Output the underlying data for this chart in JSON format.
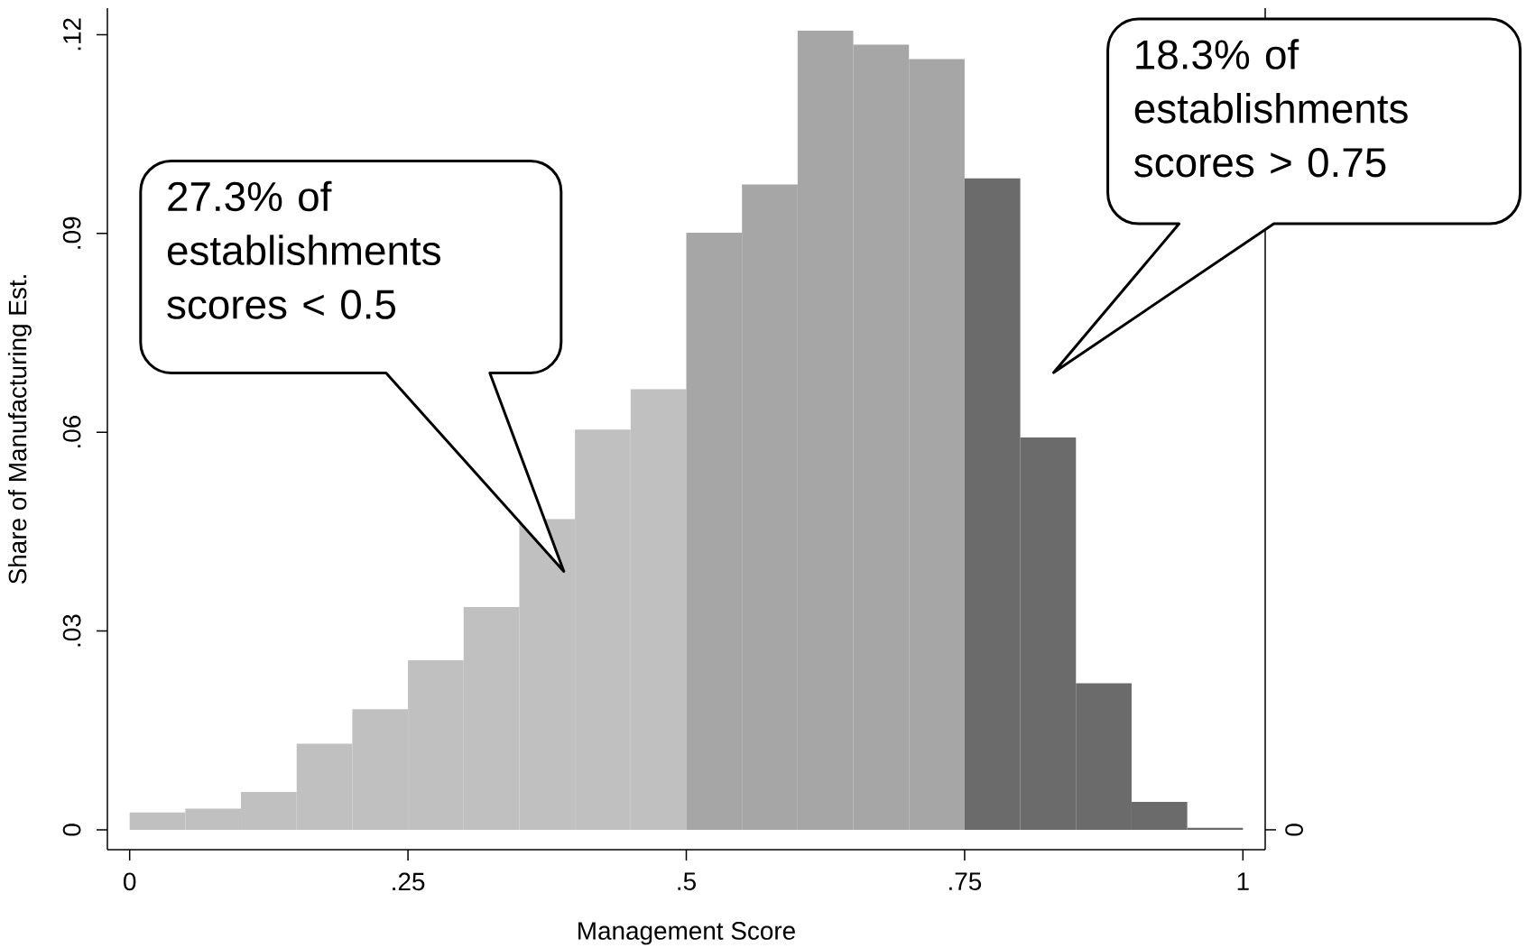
{
  "chart_data": {
    "type": "histogram",
    "xlabel": "Management Score",
    "ylabel": "Share of Manufacturing Est.",
    "bins": [
      0,
      0.05,
      0.1,
      0.15,
      0.2,
      0.25,
      0.3,
      0.35,
      0.4,
      0.45,
      0.5,
      0.55,
      0.6,
      0.65,
      0.7,
      0.75,
      0.8,
      0.85,
      0.9,
      0.95,
      1
    ],
    "values": [
      0.0026,
      0.0032,
      0.0057,
      0.013,
      0.0182,
      0.0256,
      0.0336,
      0.0469,
      0.0604,
      0.0665,
      0.0901,
      0.0974,
      0.1206,
      0.1185,
      0.1163,
      0.0983,
      0.0592,
      0.0221,
      0.0042,
      0.0003
    ],
    "colors": [
      "#c0c0c0",
      "#c0c0c0",
      "#c0c0c0",
      "#c0c0c0",
      "#c0c0c0",
      "#c0c0c0",
      "#c0c0c0",
      "#c0c0c0",
      "#c0c0c0",
      "#c0c0c0",
      "#a6a6a6",
      "#a6a6a6",
      "#a6a6a6",
      "#a6a6a6",
      "#a6a6a6",
      "#6b6b6b",
      "#6b6b6b",
      "#6b6b6b",
      "#6b6b6b",
      "#6b6b6b"
    ],
    "xlim": [
      -0.02,
      1.02
    ],
    "ylim": [
      -0.003,
      0.124
    ],
    "xticks": [
      0,
      {
        "value": 0.25,
        "label": ".25"
      },
      {
        "value": 0.5,
        "label": ".5"
      },
      {
        "value": 0.75,
        "label": ".75"
      },
      1
    ],
    "yticks": [
      0,
      {
        "value": 0.03,
        "label": ".03"
      },
      {
        "value": 0.06,
        "label": ".06"
      },
      {
        "value": 0.09,
        "label": ".09"
      },
      {
        "value": 0.12,
        "label": ".12"
      }
    ],
    "annotations": [
      "27.3% of establishments scores < 0.5",
      "18.3% of establishments scores > 0.75",
      "0"
    ]
  }
}
